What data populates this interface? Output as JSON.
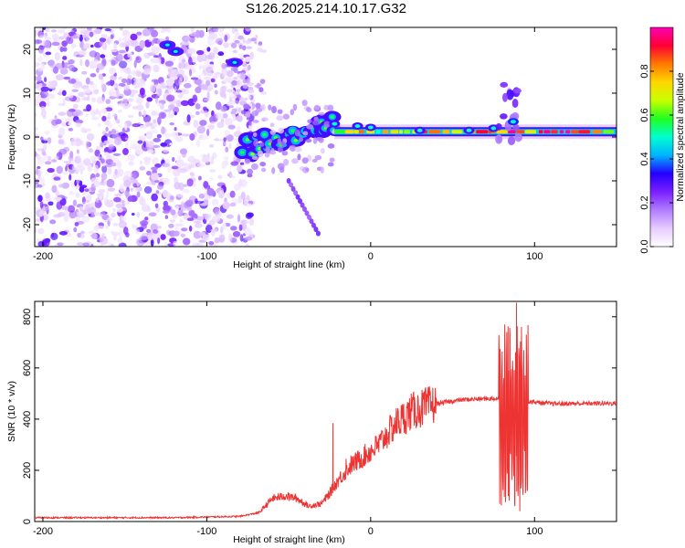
{
  "title": "S126.2025.214.10.17.G32",
  "chart_data": [
    {
      "type": "heatmap",
      "xlabel": "Height of straight line (km)",
      "ylabel": "Frequency (Hz)",
      "xlim": [
        -205,
        150
      ],
      "ylim": [
        -25,
        25
      ],
      "xticks": [
        -200,
        -100,
        0,
        100
      ],
      "yticks": [
        -20,
        -10,
        0,
        10,
        20
      ],
      "colorbar": {
        "label": "Normalized spectral amplitude",
        "range": [
          0,
          1
        ],
        "ticks": [
          "0.0",
          "0.2",
          "0.4",
          "0.6",
          "0.8"
        ],
        "colormap": [
          "#ffffff",
          "#e6ccff",
          "#b07dff",
          "#7a1fff",
          "#2200ff",
          "#00b4ff",
          "#00ffd0",
          "#20ff20",
          "#c8ff00",
          "#ffd700",
          "#ff7a00",
          "#ff0033",
          "#ff00b4"
        ]
      },
      "features": {
        "noise_region_x": [
          -205,
          -78
        ],
        "main_tone_hz": 1.2,
        "main_tone_x": [
          -22,
          150
        ],
        "ramp_segment": {
          "x": [
            -78,
            -22
          ],
          "hz": [
            -3,
            3
          ]
        },
        "early_blobs": [
          {
            "x": -124,
            "hz": 21
          },
          {
            "x": -119,
            "hz": 19.5
          },
          {
            "x": -83,
            "hz": 17
          }
        ],
        "descending_branch": {
          "x": [
            -50,
            -32
          ],
          "hz": [
            -10,
            -22
          ]
        },
        "spike_region": {
          "x": [
            78,
            92
          ],
          "hz": [
            -1,
            12
          ]
        }
      }
    },
    {
      "type": "line",
      "xlabel": "Height of straight line (km)",
      "ylabel": "SNR (10 * v/v)",
      "xlim": [
        -205,
        150
      ],
      "ylim": [
        0,
        860
      ],
      "xticks": [
        -200,
        -100,
        0,
        100
      ],
      "yticks": [
        0,
        200,
        400,
        600,
        800
      ],
      "color": "#ee3333",
      "profile": [
        [
          -205,
          15
        ],
        [
          -120,
          15
        ],
        [
          -80,
          20
        ],
        [
          -68,
          35
        ],
        [
          -60,
          90
        ],
        [
          -52,
          100
        ],
        [
          -45,
          90
        ],
        [
          -38,
          60
        ],
        [
          -30,
          70
        ],
        [
          -25,
          110
        ],
        [
          -20,
          160
        ],
        [
          -12,
          220
        ],
        [
          -5,
          250
        ],
        [
          5,
          300
        ],
        [
          15,
          380
        ],
        [
          25,
          430
        ],
        [
          40,
          460
        ],
        [
          55,
          475
        ],
        [
          70,
          480
        ],
        [
          78,
          480
        ],
        [
          95,
          470
        ],
        [
          110,
          460
        ],
        [
          150,
          462
        ]
      ],
      "spikes": [
        {
          "x": -23,
          "y": 385
        },
        {
          "x": -15,
          "y": 245
        },
        {
          "x": 82,
          "y": 670
        },
        {
          "x": 85,
          "y": 730
        },
        {
          "x": 89,
          "y": 855
        },
        {
          "x": 92,
          "y": 760
        }
      ],
      "dips": [
        {
          "x": 84,
          "y": 100
        },
        {
          "x": 88,
          "y": 60
        },
        {
          "x": 91,
          "y": 40
        }
      ]
    }
  ]
}
